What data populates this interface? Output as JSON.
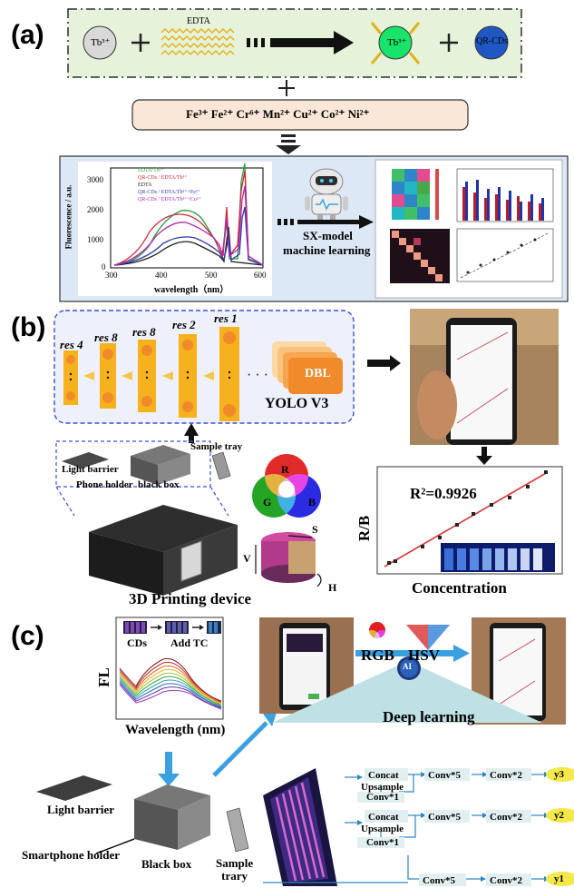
{
  "panel_a": {
    "label": "(a)",
    "tb_reagent": "Tb³⁺",
    "edta_label": "EDTA",
    "tb_complex": "Tb³⁺",
    "qr_cds": "QR-CDs",
    "ions": "Fe³⁺  Fe²⁺  Cr⁶⁺  Mn²⁺  Cu²⁺  Co²⁺  Ni²⁺",
    "ml_line1": "SX-model",
    "ml_line2": "machine learning",
    "spectrum": {
      "ylabel": "Fluorescence / a.u.",
      "xlabel": "wavelength（nm）",
      "yticks": [
        "0",
        "1000",
        "2000",
        "3000"
      ],
      "xticks": [
        "300",
        "400",
        "500",
        "600"
      ],
      "legend": [
        "EDTA/Tb³⁺",
        "QR-CDs / EDTA/Tb³⁺",
        "EDTA",
        "QR-CDs / EDTA/Tb³⁺+Fe²⁺",
        "QR-CDs / EDTA/Tb³⁺+Cu²⁺"
      ],
      "colors": [
        "#2a9d3a",
        "#d0263a",
        "#1c1c1c",
        "#2b3aa8",
        "#b02ab0"
      ]
    }
  },
  "panel_b": {
    "label": "(b)",
    "res": [
      "res 4",
      "res 8",
      "res 8",
      "res 2",
      "res 1"
    ],
    "dbl": "DBL",
    "yolo": "YOLO V3",
    "sample_tray": "Sample tray",
    "light_barrier": "Light barrier",
    "phone_holder": "Phone holder",
    "black_box": "black box",
    "rgb": [
      "R",
      "G",
      "B"
    ],
    "hsv": [
      "S",
      "V",
      "H"
    ],
    "device": "3D Printing device",
    "r2": "R²=0.9926",
    "ylabel": "R/B",
    "xlabel": "Concentration"
  },
  "panel_c": {
    "label": "(c)",
    "cds": "CDs",
    "add_tc": "Add TC",
    "fl": "FL",
    "wavelength": "Wavelength (nm)",
    "rgb": "RGB",
    "hsv": "HSV",
    "ai": "AI",
    "deep_learning": "Deep learning",
    "light_barrier": "Light barrier",
    "smartphone_holder": "Smartphone holder",
    "black_box": "Black box",
    "sample_trary": "Sample\ntrary",
    "concat1": "Concat",
    "upsample1": "Upsample",
    "conv1a": "Conv*1",
    "concat2": "Concat",
    "upsample2": "Upsample",
    "conv1b": "Conv*1",
    "conv5": [
      "Conv*5",
      "Conv*5",
      "Conv*5"
    ],
    "conv2": [
      "Conv*2",
      "Conv*2",
      "Conv*2"
    ],
    "outputs": [
      "y3",
      "y2",
      "y1"
    ]
  }
}
